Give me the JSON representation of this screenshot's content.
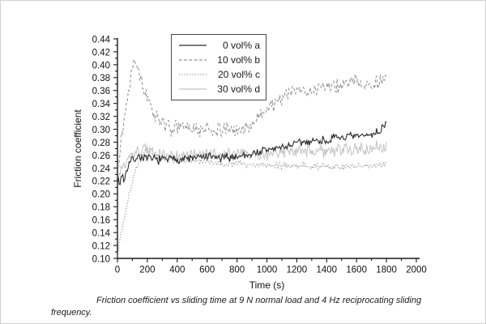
{
  "figure": {
    "caption": "Friction coefficient vs sliding time at 9 N normal load and 4 Hz reciprocating sliding frequency."
  },
  "chart_data": {
    "type": "line",
    "title": "",
    "xlabel": "Time (s)",
    "ylabel": "Friction coefficient",
    "xlim": [
      0,
      2000
    ],
    "ylim": [
      0.1,
      0.44
    ],
    "x_ticks": [
      0,
      200,
      400,
      600,
      800,
      1000,
      1200,
      1400,
      1600,
      1800,
      2000
    ],
    "x_tick_step": 200,
    "x_minor_step": 100,
    "y_ticks": [
      0.1,
      0.12,
      0.14,
      0.16,
      0.18,
      0.2,
      0.22,
      0.24,
      0.26,
      0.28,
      0.3,
      0.32,
      0.34,
      0.36,
      0.38,
      0.4,
      0.42,
      0.44
    ],
    "y_tick_step": 0.02,
    "y_minor_step": 0.01,
    "grid": false,
    "legend_position": "top-center-inside",
    "axis_color": "#1a1a1a",
    "series": [
      {
        "name": "0 vol% a",
        "style": "solid",
        "color": "#2b2b2b",
        "width": 1.1,
        "noise": 0.007,
        "seed": 7,
        "points": [
          [
            0,
            0.225
          ],
          [
            15,
            0.213
          ],
          [
            30,
            0.232
          ],
          [
            45,
            0.22
          ],
          [
            70,
            0.245
          ],
          [
            100,
            0.253
          ],
          [
            150,
            0.258
          ],
          [
            200,
            0.254
          ],
          [
            300,
            0.253
          ],
          [
            400,
            0.254
          ],
          [
            500,
            0.255
          ],
          [
            600,
            0.257
          ],
          [
            700,
            0.255
          ],
          [
            800,
            0.258
          ],
          [
            900,
            0.262
          ],
          [
            1000,
            0.268
          ],
          [
            1100,
            0.272
          ],
          [
            1200,
            0.278
          ],
          [
            1300,
            0.282
          ],
          [
            1400,
            0.283
          ],
          [
            1500,
            0.288
          ],
          [
            1600,
            0.288
          ],
          [
            1700,
            0.292
          ],
          [
            1760,
            0.298
          ],
          [
            1800,
            0.312
          ]
        ]
      },
      {
        "name": "10 vol% b",
        "style": "dashed",
        "color": "#8d8d8d",
        "width": 1.0,
        "noise": 0.011,
        "seed": 13,
        "points": [
          [
            0,
            0.245
          ],
          [
            30,
            0.29
          ],
          [
            60,
            0.34
          ],
          [
            90,
            0.385
          ],
          [
            115,
            0.415
          ],
          [
            130,
            0.405
          ],
          [
            160,
            0.375
          ],
          [
            200,
            0.345
          ],
          [
            240,
            0.325
          ],
          [
            280,
            0.315
          ],
          [
            320,
            0.308
          ],
          [
            360,
            0.3
          ],
          [
            420,
            0.305
          ],
          [
            480,
            0.3
          ],
          [
            540,
            0.298
          ],
          [
            600,
            0.302
          ],
          [
            660,
            0.298
          ],
          [
            720,
            0.3
          ],
          [
            780,
            0.298
          ],
          [
            840,
            0.3
          ],
          [
            900,
            0.308
          ],
          [
            950,
            0.318
          ],
          [
            1000,
            0.333
          ],
          [
            1060,
            0.342
          ],
          [
            1120,
            0.352
          ],
          [
            1180,
            0.358
          ],
          [
            1240,
            0.362
          ],
          [
            1300,
            0.356
          ],
          [
            1360,
            0.366
          ],
          [
            1420,
            0.37
          ],
          [
            1480,
            0.366
          ],
          [
            1540,
            0.372
          ],
          [
            1600,
            0.376
          ],
          [
            1660,
            0.366
          ],
          [
            1720,
            0.372
          ],
          [
            1800,
            0.378
          ]
        ]
      },
      {
        "name": "20 vol% c",
        "style": "dotted",
        "color": "#979797",
        "width": 1.2,
        "noise": 0.005,
        "seed": 21,
        "points": [
          [
            0,
            0.104
          ],
          [
            25,
            0.14
          ],
          [
            50,
            0.168
          ],
          [
            75,
            0.195
          ],
          [
            100,
            0.218
          ],
          [
            125,
            0.238
          ],
          [
            150,
            0.255
          ],
          [
            175,
            0.264
          ],
          [
            200,
            0.268
          ],
          [
            240,
            0.262
          ],
          [
            280,
            0.257
          ],
          [
            340,
            0.253
          ],
          [
            400,
            0.251
          ],
          [
            500,
            0.25
          ],
          [
            600,
            0.249
          ],
          [
            700,
            0.247
          ],
          [
            800,
            0.247
          ],
          [
            900,
            0.246
          ],
          [
            1000,
            0.245
          ],
          [
            1100,
            0.244
          ],
          [
            1200,
            0.243
          ],
          [
            1300,
            0.243
          ],
          [
            1400,
            0.242
          ],
          [
            1500,
            0.242
          ],
          [
            1600,
            0.243
          ],
          [
            1700,
            0.243
          ],
          [
            1800,
            0.245
          ]
        ]
      },
      {
        "name": "30 vol% d",
        "style": "solid",
        "color": "#c3c3c3",
        "width": 1.0,
        "noise": 0.01,
        "seed": 33,
        "points": [
          [
            0,
            0.222
          ],
          [
            30,
            0.238
          ],
          [
            60,
            0.25
          ],
          [
            100,
            0.258
          ],
          [
            140,
            0.265
          ],
          [
            180,
            0.268
          ],
          [
            240,
            0.262
          ],
          [
            300,
            0.26
          ],
          [
            400,
            0.259
          ],
          [
            500,
            0.261
          ],
          [
            600,
            0.263
          ],
          [
            700,
            0.261
          ],
          [
            800,
            0.261
          ],
          [
            900,
            0.261
          ],
          [
            1000,
            0.262
          ],
          [
            1100,
            0.264
          ],
          [
            1200,
            0.264
          ],
          [
            1300,
            0.266
          ],
          [
            1400,
            0.266
          ],
          [
            1500,
            0.268
          ],
          [
            1600,
            0.268
          ],
          [
            1700,
            0.27
          ],
          [
            1800,
            0.274
          ]
        ]
      }
    ]
  }
}
